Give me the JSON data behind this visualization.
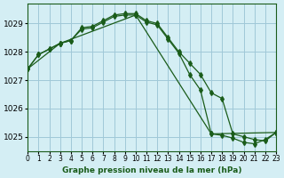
{
  "title": "Graphe pression niveau de la mer (hPa)",
  "background_color": "#d4eef4",
  "grid_color": "#a0c8d8",
  "line_color": "#1a5c1a",
  "x_labels": [
    "0",
    "1",
    "2",
    "3",
    "4",
    "5",
    "6",
    "7",
    "8",
    "9",
    "10",
    "11",
    "12",
    "13",
    "14",
    "15",
    "16",
    "17",
    "18",
    "19",
    "20",
    "21",
    "22",
    "23"
  ],
  "xlim": [
    0,
    23
  ],
  "ylim": [
    1024.5,
    1029.7
  ],
  "yticks": [
    1025,
    1026,
    1027,
    1028,
    1029
  ],
  "line1_x": [
    0,
    1,
    2,
    3,
    4,
    5,
    6,
    7,
    8,
    9,
    10,
    11,
    12,
    13,
    14,
    15,
    16,
    17,
    18,
    19,
    20,
    21,
    22,
    23
  ],
  "line1_y": [
    1027.4,
    1027.9,
    1028.1,
    1028.3,
    1028.4,
    1028.85,
    1028.9,
    1029.1,
    1029.3,
    1029.35,
    1029.35,
    1029.1,
    1029.0,
    1028.5,
    1028.0,
    1027.6,
    1027.2,
    1026.55,
    1026.35,
    1025.1,
    1025.0,
    1024.9,
    1024.85,
    1025.15
  ],
  "line2_x": [
    0,
    1,
    2,
    3,
    4,
    5,
    6,
    7,
    8,
    9,
    10,
    11,
    12,
    13,
    14,
    15,
    16,
    17,
    18,
    19,
    20,
    21,
    22,
    23
  ],
  "line2_y": [
    1027.4,
    1027.9,
    1028.1,
    1028.3,
    1028.4,
    1028.8,
    1028.85,
    1029.05,
    1029.25,
    1029.3,
    1029.3,
    1029.05,
    1028.95,
    1028.45,
    1027.95,
    1027.2,
    1026.65,
    1025.1,
    1025.05,
    1024.95,
    1024.8,
    1024.75,
    1024.9,
    1025.15
  ],
  "line3_x": [
    0,
    3,
    10,
    17,
    23
  ],
  "line3_y": [
    1027.4,
    1028.3,
    1029.3,
    1025.1,
    1025.15
  ]
}
